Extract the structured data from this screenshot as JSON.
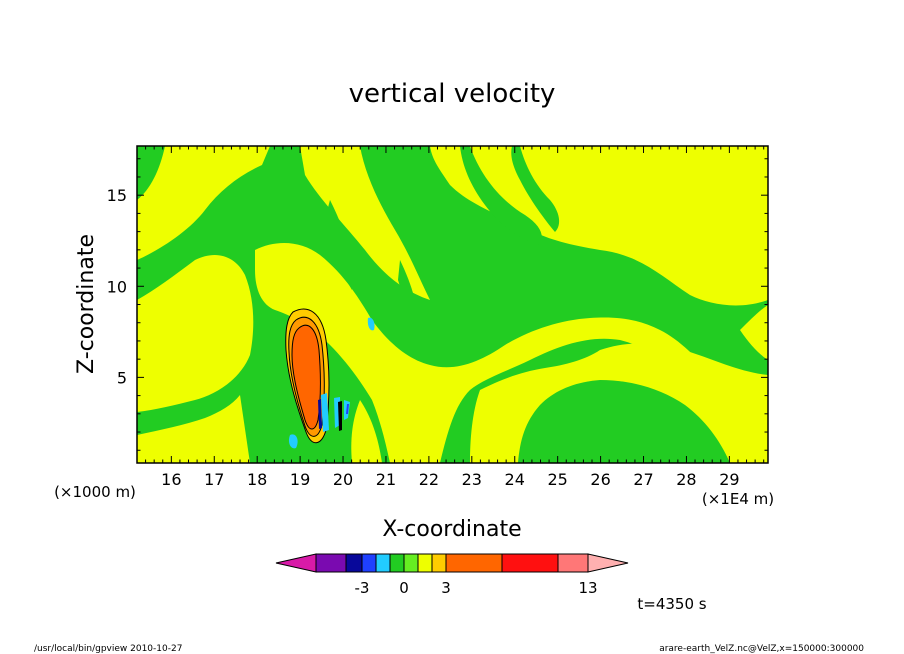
{
  "chart_data": {
    "type": "heatmap",
    "title": "vertical velocity",
    "xlabel": "X-coordinate",
    "ylabel": "Z-coordinate",
    "x_unit_note": "(×1E4 m)",
    "y_unit_note": "(×1000 m)",
    "xlim": [
      15.2,
      29.9
    ],
    "ylim": [
      0.3,
      17.7
    ],
    "x_ticks": [
      "16",
      "17",
      "18",
      "19",
      "20",
      "21",
      "22",
      "23",
      "24",
      "25",
      "26",
      "27",
      "28",
      "29"
    ],
    "y_ticks": [
      "5",
      "10",
      "15"
    ],
    "colorbar": {
      "colors": [
        "#d81aa8",
        "#7a0ab0",
        "#08089a",
        "#1f40ff",
        "#22ccff",
        "#22cc22",
        "#66ee22",
        "#eeff00",
        "#ffcc00",
        "#ff6600",
        "#ff1010",
        "#ff7777",
        "#ffb0b0"
      ],
      "labels": [
        "-3",
        "0",
        "3",
        "13"
      ]
    },
    "annotation_time": "t=4350 s",
    "footer_left": "/usr/local/bin/gpview   2010-10-27",
    "footer_right": "arare-earth_VelZ.nc@VelZ,x=150000:300000"
  }
}
